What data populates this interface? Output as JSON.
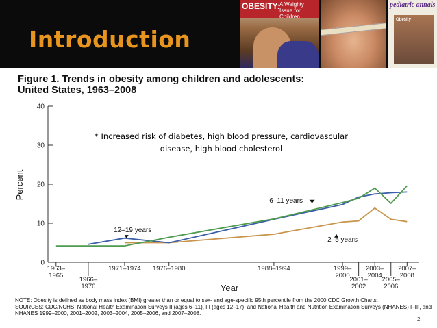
{
  "slide": {
    "title": "Introduction",
    "slide_number": "2"
  },
  "images": {
    "cover1_title": "OBESITY:",
    "cover1_subtitle": "A Weighty Issue for Children",
    "cover3_title": "pediatric annals",
    "cover3_subtitle": "Obesity"
  },
  "figure": {
    "title_line1": "Figure 1. Trends in obesity among children and adolescents:",
    "title_line2": "United States, 1963–2008"
  },
  "annotation": {
    "line1": "* Increased risk of  diabetes, high blood pressure, cardiovascular",
    "line2": "disease, high blood cholesterol"
  },
  "note": {
    "line1": "NOTE: Obesity is defined as body mass index (BMI) greater than or equal to sex- and age-specific 95th percentile from the 2000 CDC Growth Charts.",
    "line2": "SOURCES: CDC/NCHS, National Health Examination Surveys II (ages 6–11), III (ages 12–17), and National Health and Nutrition Examination Surveys (NHANES) I–III, and NHANES 1999–2000, 2001–2002, 2003–2004, 2005–2006, and 2007–2008."
  },
  "chart_data": {
    "type": "line",
    "title": "Figure 1. Trends in obesity among children and adolescents: United States, 1963–2008",
    "xlabel": "Year",
    "ylabel": "Percent",
    "ylim": [
      0,
      40
    ],
    "yticks": [
      0,
      10,
      20,
      30,
      40
    ],
    "xlim": [
      1963,
      2009
    ],
    "x_ticks": [
      {
        "x": 1964,
        "label": "1963–\n1965",
        "pos": "top"
      },
      {
        "x": 1968,
        "label": "1966–\n1970",
        "pos": "bottom"
      },
      {
        "x": 1972.5,
        "label": "1971–1974",
        "pos": "top"
      },
      {
        "x": 1978,
        "label": "1976–1980",
        "pos": "top"
      },
      {
        "x": 1991,
        "label": "1988–1994",
        "pos": "top"
      },
      {
        "x": 1999.5,
        "label": "1999–\n2000",
        "pos": "top"
      },
      {
        "x": 2001.5,
        "label": "2001–\n2002",
        "pos": "bottom"
      },
      {
        "x": 2003.5,
        "label": "2003–\n2004",
        "pos": "top"
      },
      {
        "x": 2005.5,
        "label": "2005–\n2006",
        "pos": "bottom"
      },
      {
        "x": 2007.5,
        "label": "2007–\n2008",
        "pos": "top"
      }
    ],
    "series": [
      {
        "name": "2–5 years",
        "color": "#c8954e",
        "x": [
          1972.5,
          1978,
          1991,
          1999.5,
          2001.5,
          2003.5,
          2005.5,
          2007.5
        ],
        "values": [
          5.0,
          5.0,
          7.2,
          10.3,
          10.6,
          13.9,
          11.0,
          10.4
        ]
      },
      {
        "name": "6–11 years",
        "color": "#3a5fa8",
        "x": [
          1968,
          1972.5,
          1978,
          1991,
          1999.5,
          2001.5,
          2003.5,
          2005.5,
          2007.5
        ],
        "values": [
          4.6,
          6.2,
          5.0,
          11.0,
          14.8,
          16.7,
          17.5,
          17.8,
          18.0
        ]
      },
      {
        "name": "12–19 years",
        "color": "#4e9a4e",
        "x": [
          1964,
          1972.5,
          1978,
          1991,
          1999.5,
          2001.5,
          2003.5,
          2005.5,
          2007.5
        ],
        "values": [
          4.2,
          4.2,
          6.4,
          11.1,
          15.3,
          16.4,
          19.0,
          15.1,
          19.6
        ]
      }
    ],
    "series_labels": [
      {
        "series": "12–19 years",
        "text": "12–19 years",
        "x": 1973.5,
        "y": 7.7
      },
      {
        "series": "6–11 years",
        "text": "6–11 years",
        "x": 1992.5,
        "y": 15.3
      },
      {
        "series": "2–5 years",
        "text": "2–5 years",
        "x": 1999.5,
        "y": 5.3
      }
    ]
  }
}
